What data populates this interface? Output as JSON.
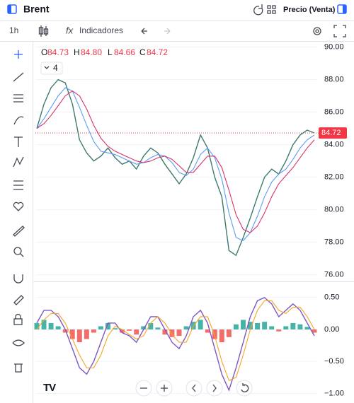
{
  "header": {
    "title": "Brent",
    "price_type": "Precio (Venta)"
  },
  "toolbar": {
    "interval": "1h",
    "indicators": "Indicadores"
  },
  "legend": {
    "o_label": "O",
    "open": "84.73",
    "h_label": "H",
    "high": "84.80",
    "l_label": "L",
    "low": "84.66",
    "c_label": "C",
    "close": "84.72",
    "studies": "4"
  },
  "chart_data": [
    {
      "type": "line",
      "ylim": [
        75.6,
        90.2
      ],
      "yticks": [
        {
          "value": 76,
          "label": "76.00"
        },
        {
          "value": 78,
          "label": "78.00"
        },
        {
          "value": 80,
          "label": "80.00"
        },
        {
          "value": 82,
          "label": "82.00"
        },
        {
          "value": 84,
          "label": "84.00"
        },
        {
          "value": 86,
          "label": "86.00"
        },
        {
          "value": 88,
          "label": "88.00"
        },
        {
          "value": 90,
          "label": "90.00"
        }
      ],
      "grid": true,
      "last_price": {
        "value": 84.72,
        "label": "84.72",
        "color": "#f23645"
      },
      "series": [
        {
          "color": "#3d7a6e",
          "values": [
            85.0,
            86.5,
            87.5,
            88.0,
            87.8,
            86.5,
            84.3,
            83.5,
            83.0,
            83.3,
            83.8,
            83.2,
            82.8,
            83.0,
            82.5,
            83.3,
            83.8,
            83.5,
            82.8,
            82.2,
            81.6,
            82.2,
            83.2,
            84.6,
            83.8,
            82.0,
            80.8,
            77.5,
            77.2,
            78.3,
            79.5,
            80.8,
            82.0,
            82.5,
            82.2,
            83.0,
            84.0,
            84.6,
            84.9,
            84.72
          ]
        },
        {
          "color": "#5b9cf6",
          "values": [
            85.0,
            85.6,
            86.3,
            87.0,
            87.5,
            87.3,
            86.3,
            85.2,
            84.2,
            83.6,
            83.5,
            83.4,
            83.2,
            83.0,
            82.8,
            82.9,
            83.2,
            83.4,
            83.3,
            82.9,
            82.3,
            82.1,
            82.5,
            83.4,
            83.8,
            83.2,
            81.9,
            79.8,
            78.3,
            78.1,
            78.6,
            79.6,
            80.8,
            81.7,
            82.2,
            82.5,
            83.1,
            83.8,
            84.3,
            84.6
          ]
        },
        {
          "color": "#d6336c",
          "values": [
            85.0,
            85.3,
            85.8,
            86.4,
            87.0,
            87.3,
            87.0,
            86.2,
            85.2,
            84.4,
            83.9,
            83.6,
            83.4,
            83.2,
            83.0,
            82.9,
            83.0,
            83.2,
            83.3,
            83.1,
            82.7,
            82.3,
            82.3,
            82.8,
            83.3,
            83.3,
            82.6,
            81.2,
            79.7,
            78.8,
            78.6,
            79.0,
            79.8,
            80.8,
            81.6,
            82.1,
            82.6,
            83.2,
            83.8,
            84.3
          ]
        }
      ]
    },
    {
      "type": "bar",
      "ylim": [
        -1.04,
        0.73
      ],
      "yticks": [
        {
          "value": -1,
          "label": "−1.00"
        },
        {
          "value": -0.5,
          "label": "−0.50"
        },
        {
          "value": 0,
          "label": "0.00"
        },
        {
          "value": 0.5,
          "label": "0.50"
        }
      ],
      "up_color": "#26a69a",
      "down_color": "#ef5350",
      "values": [
        0.1,
        0.15,
        0.1,
        0.05,
        -0.05,
        -0.15,
        -0.2,
        -0.15,
        -0.05,
        0.05,
        0.1,
        0.02,
        -0.05,
        -0.02,
        -0.08,
        0.05,
        0.1,
        0.03,
        -0.08,
        -0.12,
        -0.1,
        0.05,
        0.12,
        0.15,
        -0.05,
        -0.15,
        -0.2,
        -0.12,
        0.08,
        0.15,
        0.12,
        0.1,
        0.12,
        0.05,
        -0.03,
        0.05,
        0.1,
        0.08,
        0.04,
        -0.05
      ],
      "series": [
        {
          "color": "#7e57c2",
          "values": [
            0.1,
            0.3,
            0.3,
            0.2,
            0.0,
            -0.3,
            -0.6,
            -0.7,
            -0.5,
            -0.2,
            0.1,
            0.1,
            -0.05,
            -0.1,
            -0.2,
            0.0,
            0.2,
            0.2,
            0.0,
            -0.2,
            -0.3,
            -0.1,
            0.2,
            0.3,
            0.1,
            -0.3,
            -0.7,
            -0.95,
            -0.6,
            -0.2,
            0.2,
            0.45,
            0.5,
            0.4,
            0.2,
            0.3,
            0.4,
            0.3,
            0.1,
            -0.1
          ]
        },
        {
          "color": "#f5a623",
          "values": [
            0.0,
            0.15,
            0.25,
            0.25,
            0.1,
            -0.15,
            -0.4,
            -0.6,
            -0.6,
            -0.4,
            -0.1,
            0.05,
            0.0,
            -0.08,
            -0.15,
            -0.1,
            0.1,
            0.2,
            0.1,
            -0.08,
            -0.2,
            -0.2,
            0.05,
            0.2,
            0.2,
            -0.1,
            -0.5,
            -0.8,
            -0.75,
            -0.4,
            0.0,
            0.3,
            0.45,
            0.45,
            0.3,
            0.25,
            0.35,
            0.35,
            0.2,
            0.0
          ]
        }
      ]
    }
  ]
}
